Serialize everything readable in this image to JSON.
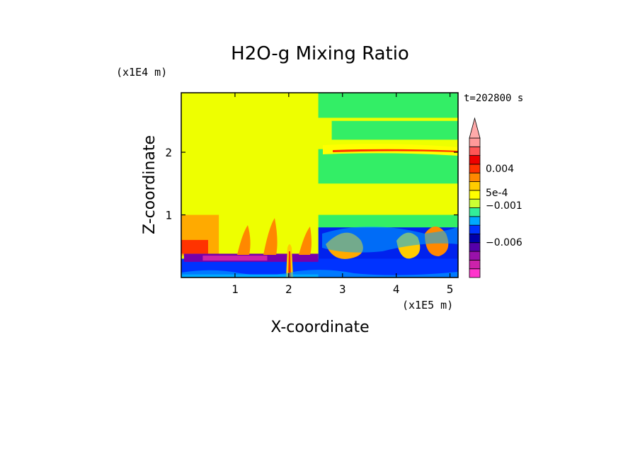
{
  "chart_data": {
    "type": "heatmap",
    "title": "H2O-g Mixing Ratio",
    "xlabel": "X-coordinate",
    "ylabel": "Z-coordinate",
    "x_unit": "(x1E5 m)",
    "y_unit": "(x1E4 m)",
    "time_label": "t=202800 s",
    "xlim": [
      0,
      5.15
    ],
    "ylim": [
      0,
      2.95
    ],
    "x_ticks": [
      1,
      2,
      3,
      4,
      5
    ],
    "y_ticks": [
      1,
      2
    ],
    "x_tick_labels": [
      "1",
      "2",
      "3",
      "4",
      "5"
    ],
    "y_tick_labels": [
      "1",
      "2"
    ],
    "colorbar": {
      "colors": [
        "#ff33cc",
        "#cc22aa",
        "#9911aa",
        "#5500aa",
        "#0000aa",
        "#0033ff",
        "#00aaff",
        "#33ee99",
        "#ccff33",
        "#ffff00",
        "#ffcc00",
        "#ff8800",
        "#ff3300",
        "#ee0000",
        "#ff5555",
        "#ff9999"
      ],
      "labels": [
        "0.004",
        "5e-4",
        "−0.001",
        "−0.006"
      ],
      "label_values": [
        0.004,
        0.0005,
        -0.001,
        -0.006
      ],
      "extend_max": true
    },
    "regions": [
      {
        "x0": 0,
        "x1": 2.55,
        "z0": 1.0,
        "z1": 2.95,
        "color": "#eeff00"
      },
      {
        "x0": 2.55,
        "x1": 5.15,
        "z0": 0.8,
        "z1": 2.95,
        "color": "#eeff00"
      },
      {
        "x0": 2.55,
        "x1": 5.15,
        "z0": 2.55,
        "z1": 2.95,
        "color": "#33ee66"
      },
      {
        "x0": 2.8,
        "x1": 5.15,
        "z0": 2.2,
        "z1": 2.5,
        "color": "#33ee66"
      },
      {
        "x0": 2.55,
        "x1": 5.15,
        "z0": 1.5,
        "z1": 2.05,
        "color": "#33ee66"
      },
      {
        "x0": 2.55,
        "x1": 5.15,
        "z0": 0.7,
        "z1": 1.0,
        "color": "#33ee66"
      },
      {
        "x0": 2.55,
        "x1": 5.15,
        "z0": 0.0,
        "z1": 0.8,
        "color": "#0022ee"
      },
      {
        "x0": 0,
        "x1": 2.55,
        "z0": 0.3,
        "z1": 1.0,
        "color": "#eeff00"
      },
      {
        "x0": 0,
        "x1": 0.7,
        "z0": 0.35,
        "z1": 1.0,
        "color": "#ffaa00"
      },
      {
        "x0": 0,
        "x1": 0.5,
        "z0": 0.38,
        "z1": 0.6,
        "color": "#ff3300"
      },
      {
        "x0": 0,
        "x1": 5.15,
        "z0": 0.0,
        "z1": 0.3,
        "color": "#0033ff"
      },
      {
        "x0": 0.05,
        "x1": 2.55,
        "z0": 0.25,
        "z1": 0.38,
        "color": "#7700aa"
      },
      {
        "x0": 0.4,
        "x1": 1.6,
        "z0": 0.27,
        "z1": 0.35,
        "color": "#cc22aa"
      },
      {
        "x0": 0,
        "x1": 2.55,
        "z0": 0.0,
        "z1": 0.05,
        "color": "#00aaff"
      }
    ]
  }
}
